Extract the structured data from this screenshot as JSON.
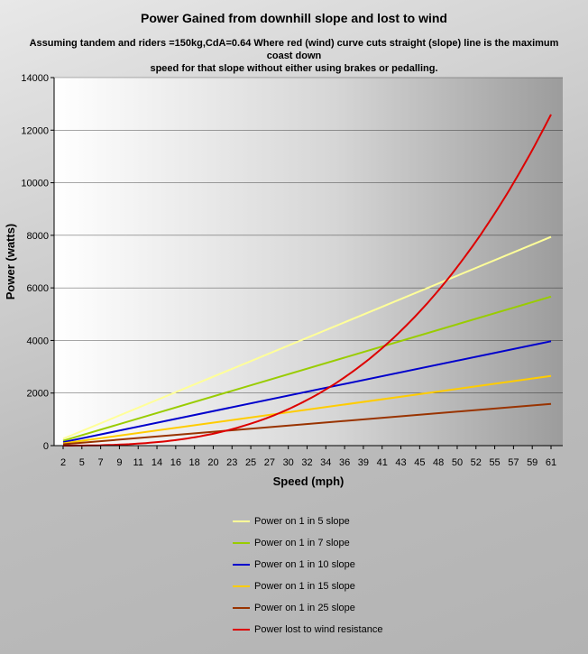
{
  "chart_data": {
    "type": "line",
    "title": "Power Gained from downhill slope and lost to wind",
    "subtitle_lines": [
      "Assuming tandem and riders =150kg,CdA=0.64 Where red (wind) curve cuts straight (slope) line is the maximum coast down",
      "speed for that slope without either using brakes or pedalling."
    ],
    "xlabel": "Speed (mph)",
    "ylabel": "Power (watts)",
    "x_ticks": [
      2,
      5,
      7,
      9,
      11,
      14,
      16,
      18,
      20,
      23,
      25,
      27,
      30,
      32,
      34,
      36,
      39,
      41,
      43,
      45,
      48,
      50,
      52,
      55,
      57,
      59,
      61
    ],
    "x_range": [
      2,
      61
    ],
    "y_ticks": [
      0,
      2000,
      4000,
      6000,
      8000,
      10000,
      12000,
      14000
    ],
    "ylim": [
      0,
      14000
    ],
    "grid": "horizontal",
    "legend_position": "bottom",
    "series": [
      {
        "name": "Power on 1 in 5 slope",
        "color": "#ffff99",
        "kind": "linear",
        "x": [
          2,
          61
        ],
        "y": [
          260,
          7940
        ]
      },
      {
        "name": "Power on 1 in 7 slope",
        "color": "#99cc00",
        "kind": "linear",
        "x": [
          2,
          61
        ],
        "y": [
          185,
          5670
        ]
      },
      {
        "name": "Power on 1 in 10 slope",
        "color": "#0000cc",
        "kind": "linear",
        "x": [
          2,
          61
        ],
        "y": [
          130,
          3970
        ]
      },
      {
        "name": "Power on 1 in 15 slope",
        "color": "#ffcc00",
        "kind": "linear",
        "x": [
          2,
          61
        ],
        "y": [
          87,
          2650
        ]
      },
      {
        "name": "Power on 1 in 25 slope",
        "color": "#993300",
        "kind": "linear",
        "x": [
          2,
          61
        ],
        "y": [
          52,
          1590
        ]
      },
      {
        "name": "Power lost to wind resistance",
        "color": "#dd0000",
        "kind": "cubic",
        "x": [
          2,
          61
        ],
        "y": [
          0,
          12600
        ],
        "coefficient": 0.0555
      }
    ]
  }
}
